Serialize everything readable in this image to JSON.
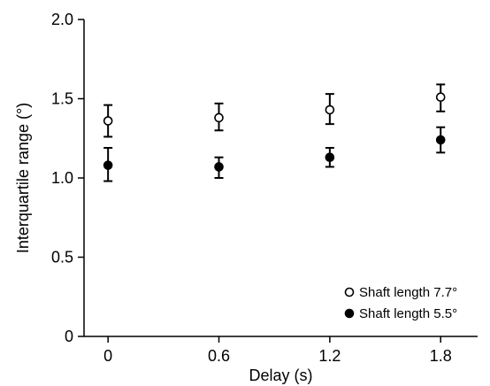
{
  "chart_data": {
    "type": "scatter",
    "title": "",
    "xlabel": "Delay (s)",
    "ylabel": "Interquartile range (°)",
    "x": [
      0,
      0.6,
      1.2,
      1.8
    ],
    "x_tick_labels": [
      "0",
      "0.6",
      "1.2",
      "1.8"
    ],
    "y_ticks": [
      0,
      0.5,
      1.0,
      1.5,
      2.0
    ],
    "y_tick_labels": [
      "0",
      "0.5",
      "1.0",
      "1.5",
      "2.0"
    ],
    "ylim": [
      0,
      2.0
    ],
    "xlim": [
      -0.13,
      2.0
    ],
    "grid": false,
    "legend_position": "bottom-right",
    "series": [
      {
        "name": "Shaft length 7.7°",
        "marker": "open-circle",
        "values": [
          1.36,
          1.38,
          1.43,
          1.51
        ],
        "error_low": [
          1.26,
          1.3,
          1.34,
          1.42
        ],
        "error_high": [
          1.46,
          1.47,
          1.53,
          1.59
        ]
      },
      {
        "name": "Shaft length 5.5°",
        "marker": "filled-circle",
        "values": [
          1.08,
          1.07,
          1.13,
          1.24
        ],
        "error_low": [
          0.98,
          1.0,
          1.07,
          1.16
        ],
        "error_high": [
          1.19,
          1.13,
          1.19,
          1.32
        ]
      }
    ],
    "colors": {
      "ink": "#000000",
      "open_fill": "#ffffff"
    }
  }
}
